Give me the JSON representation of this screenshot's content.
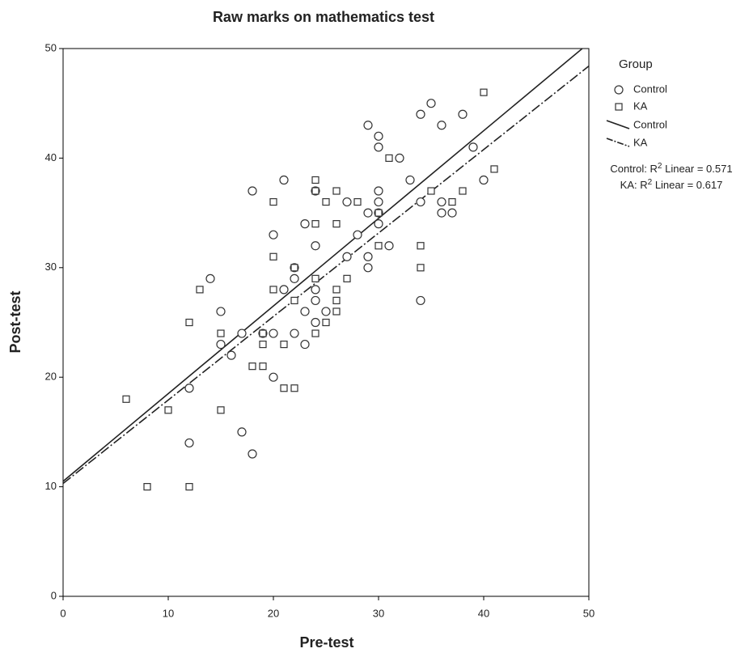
{
  "chart_data": {
    "type": "scatter",
    "title": "Raw marks on mathematics test",
    "x_label": "Pre-test",
    "y_label": "Post-test",
    "legend_title": "Group",
    "xlim": [
      0,
      50
    ],
    "ylim": [
      0,
      50
    ],
    "xticks": [
      0,
      10,
      20,
      30,
      40,
      50
    ],
    "yticks": [
      0,
      10,
      20,
      30,
      40,
      50
    ],
    "series": [
      {
        "name": "Control",
        "marker": "circle",
        "color": "#333333",
        "x": [
          29,
          30,
          30,
          35,
          34,
          38,
          36,
          32,
          39,
          40,
          33,
          21,
          18,
          30,
          27,
          30,
          30,
          29,
          34,
          36,
          36,
          37,
          24,
          23,
          30,
          28,
          20,
          24,
          31,
          29,
          27,
          29,
          22,
          22,
          21,
          24,
          24,
          34,
          23,
          25,
          15,
          24,
          14,
          17,
          20,
          22,
          19,
          15,
          23,
          16,
          20,
          12,
          17,
          12,
          18
        ],
        "y": [
          43,
          42,
          41,
          45,
          44,
          44,
          43,
          40,
          41,
          38,
          38,
          38,
          37,
          37,
          36,
          36,
          35,
          35,
          36,
          36,
          35,
          35,
          37,
          34,
          34,
          33,
          33,
          32,
          32,
          31,
          31,
          30,
          30,
          29,
          28,
          28,
          27,
          27,
          26,
          26,
          26,
          25,
          29,
          24,
          24,
          24,
          24,
          23,
          23,
          22,
          20,
          19,
          15,
          14,
          13
        ]
      },
      {
        "name": "KA",
        "marker": "square",
        "color": "#333333",
        "x": [
          40,
          41,
          38,
          37,
          35,
          31,
          24,
          24,
          26,
          20,
          25,
          28,
          30,
          24,
          26,
          30,
          34,
          20,
          34,
          22,
          13,
          20,
          26,
          24,
          27,
          22,
          26,
          26,
          25,
          12,
          15,
          19,
          24,
          19,
          21,
          18,
          19,
          21,
          22,
          6,
          15,
          10,
          8,
          12
        ],
        "y": [
          46,
          39,
          37,
          36,
          37,
          40,
          38,
          37,
          37,
          36,
          36,
          36,
          35,
          34,
          34,
          32,
          32,
          31,
          30,
          30,
          28,
          28,
          28,
          29,
          29,
          27,
          27,
          26,
          25,
          25,
          24,
          24,
          24,
          23,
          23,
          21,
          21,
          19,
          19,
          18,
          17,
          17,
          10,
          10
        ]
      }
    ],
    "fit_lines": [
      {
        "name": "Control",
        "intercept": 10.5,
        "slope": 0.8,
        "dash": "none"
      },
      {
        "name": "KA",
        "intercept": 10.3,
        "slope": 0.762,
        "dash": "12,3,2,3"
      }
    ],
    "annotations": [
      {
        "text": [
          "Control: R",
          "2",
          " Linear = 0.571"
        ]
      },
      {
        "text": [
          "KA: R",
          "2",
          " Linear = 0.617"
        ]
      }
    ]
  }
}
